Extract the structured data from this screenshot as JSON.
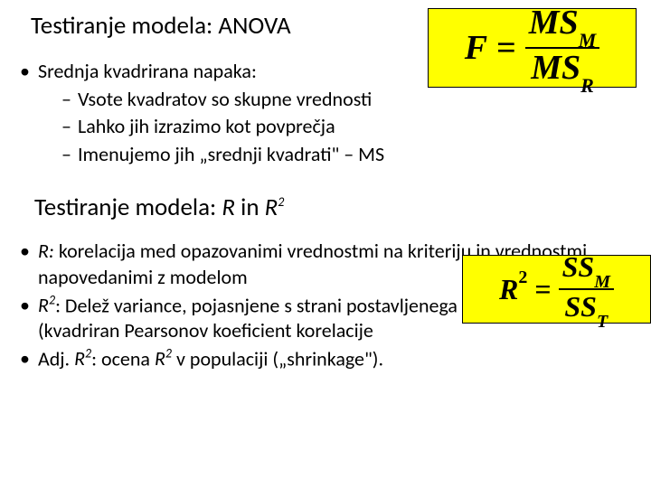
{
  "section1": {
    "heading": "Testiranje modela: ANOVA",
    "bullet1": "Srednja kvadrirana napaka:",
    "sub1": "Vsote kvadratov so skupne vrednosti",
    "sub2": "Lahko jih izrazimo kot povprečja",
    "sub3": "Imenujemo jih „srednji kvadrati\" – MS"
  },
  "section2": {
    "heading_prefix": "Testiranje modela: ",
    "heading_r": "R",
    "heading_in": " in ",
    "heading_r2": "R",
    "bullet1_label": "R:",
    "bullet1_text": " korelacija med opazovanimi vrednostmi na kriteriju in vrednostmi, napovedanimi z modelom",
    "bullet2_label": "R",
    "bullet2_suffix": ":",
    "bullet2_text": " Delež variance, pojasnjene s strani postavljenega regresijskega modela (kvadriran Pearsonov koeficient korelacije",
    "bullet3_prefix": "Adj. ",
    "bullet3_r2": "R",
    "bullet3_mid": ": ocena ",
    "bullet3_r2b": "R",
    "bullet3_end": " v populaciji („shrinkage\")."
  },
  "formula_f": {
    "lhs": "F",
    "eq": "=",
    "num_base": "MS",
    "num_sub": "M",
    "den_base": "MS",
    "den_sub": "R",
    "bg_color": "#ffff00"
  },
  "formula_r2": {
    "lhs_base": "R",
    "lhs_sup": "2",
    "eq": "=",
    "num_base": "SS",
    "num_sub": "M",
    "den_base": "SS",
    "den_sub": "T",
    "bg_color": "#ffff00"
  }
}
